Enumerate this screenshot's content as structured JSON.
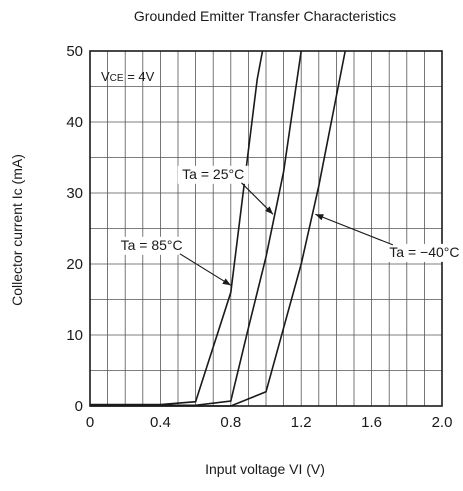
{
  "chart_data": {
    "type": "line",
    "title": "Grounded Emitter Transfer Characteristics",
    "xlabel": "Input voltage  VI (V)",
    "ylabel": "Collector current  Ic (mA)",
    "xlim": [
      0,
      2.0
    ],
    "ylim": [
      0,
      50
    ],
    "x_ticks": [
      "0",
      "0.4",
      "0.8",
      "1.2",
      "1.6",
      "2.0"
    ],
    "x_tick_values": [
      0,
      0.4,
      0.8,
      1.2,
      1.6,
      2.0
    ],
    "y_ticks": [
      "0",
      "10",
      "20",
      "30",
      "40",
      "50"
    ],
    "y_tick_values": [
      0,
      10,
      20,
      30,
      40,
      50
    ],
    "grid": true,
    "condition_text": "VCE = 4V",
    "series": [
      {
        "name": "Ta = 85°C",
        "points": [
          [
            0,
            0.2
          ],
          [
            0.4,
            0.2
          ],
          [
            0.6,
            0.6
          ],
          [
            0.8,
            16
          ],
          [
            0.9,
            36
          ],
          [
            0.95,
            46
          ],
          [
            0.98,
            50
          ]
        ]
      },
      {
        "name": "Ta = 25°C",
        "points": [
          [
            0,
            0.1
          ],
          [
            0.6,
            0.1
          ],
          [
            0.8,
            0.7
          ],
          [
            0.9,
            11
          ],
          [
            1.0,
            21
          ],
          [
            1.1,
            33
          ],
          [
            1.2,
            50
          ]
        ]
      },
      {
        "name": "Ta = −40°C",
        "points": [
          [
            0,
            0
          ],
          [
            0.8,
            0
          ],
          [
            1.0,
            2
          ],
          [
            1.1,
            11
          ],
          [
            1.2,
            20
          ],
          [
            1.3,
            31
          ],
          [
            1.45,
            50
          ]
        ]
      }
    ],
    "annotations": [
      {
        "text": "Ta = 25°C",
        "at": [
          0.7,
          32
        ],
        "arrow_to": [
          1.04,
          27
        ]
      },
      {
        "text": "Ta = 85°C",
        "at": [
          0.35,
          22
        ],
        "arrow_to": [
          0.8,
          17
        ]
      },
      {
        "text": "Ta = −40°C",
        "at": [
          1.9,
          21
        ],
        "arrow_to": [
          1.28,
          27
        ]
      }
    ]
  }
}
